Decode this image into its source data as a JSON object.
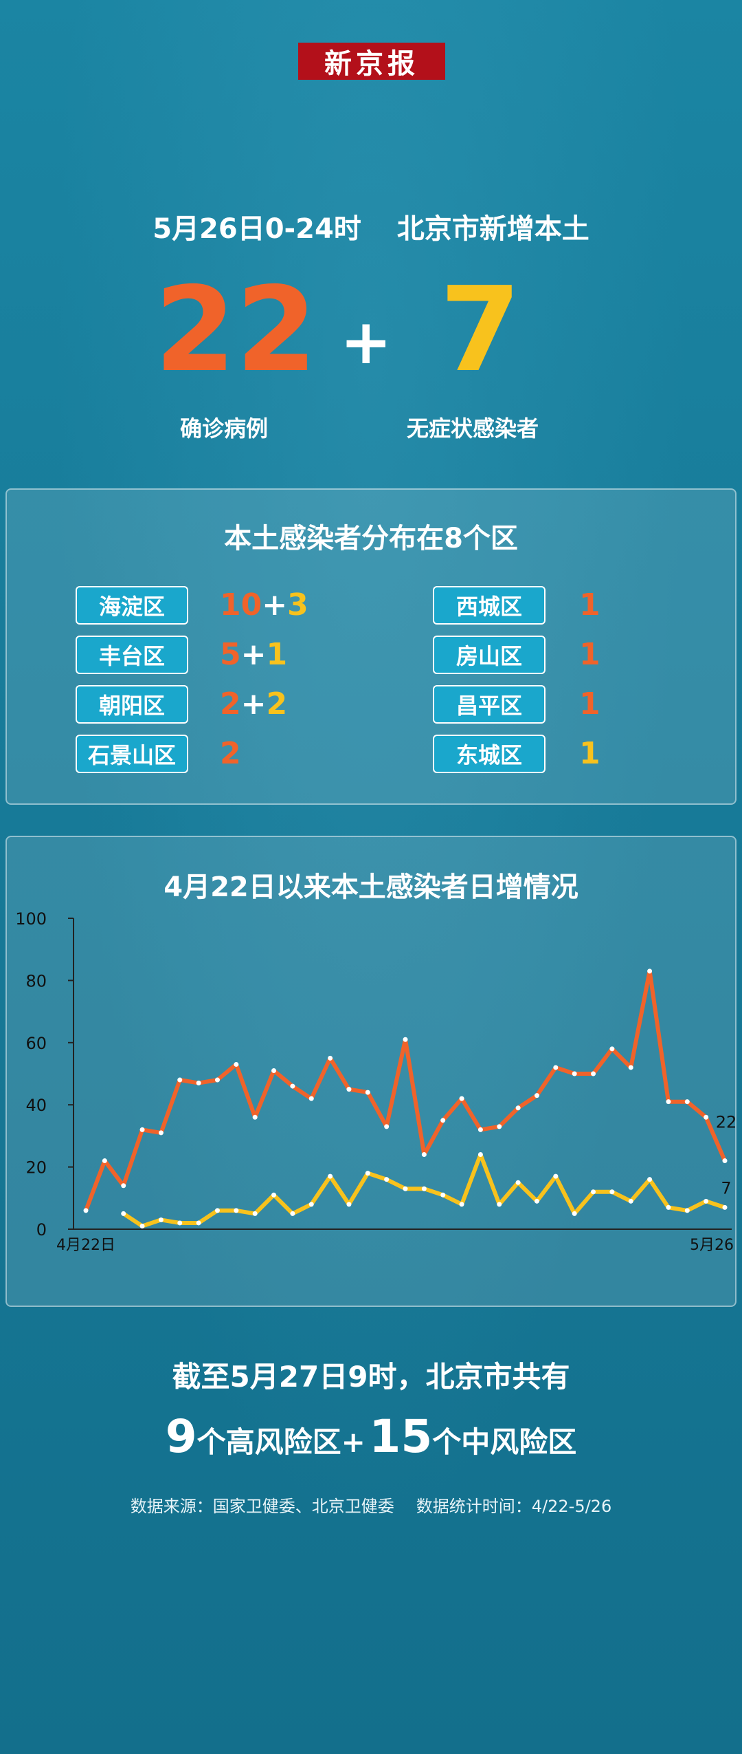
{
  "brand": "新京报",
  "headline": {
    "date": "5月26日0-24时",
    "subject": "北京市新增本土"
  },
  "summary": {
    "confirmed": "22",
    "plus": "+",
    "asymptomatic": "7",
    "confirmed_label": "确诊病例",
    "asymptomatic_label": "无症状感染者"
  },
  "districts": {
    "title": "本土感染者分布在8个区",
    "items": [
      {
        "name": "海淀区",
        "a": "10",
        "plus": "+",
        "b": "3"
      },
      {
        "name": "丰台区",
        "a": "5",
        "plus": "+",
        "b": "1"
      },
      {
        "name": "朝阳区",
        "a": "2",
        "plus": "+",
        "b": "2"
      },
      {
        "name": "石景山区",
        "a": "2"
      },
      {
        "name": "西城区",
        "a": "1"
      },
      {
        "name": "房山区",
        "a": "1"
      },
      {
        "name": "昌平区",
        "a": "1"
      },
      {
        "name": "东城区",
        "b": "1"
      }
    ]
  },
  "colors": {
    "confirmed": "#f0632a",
    "asymptomatic": "#f8c21d",
    "label_box": "#1aa7cc"
  },
  "chart_data": {
    "type": "line",
    "title": "4月22日以来本土感染者日增情况",
    "ylim": [
      0,
      100
    ],
    "yticks": [
      "0",
      "20",
      "40",
      "60",
      "80",
      "100"
    ],
    "x_first_label": "4月22日",
    "x_last_label": "5月26日",
    "series": [
      {
        "key": "confirmed",
        "values": [
          6,
          22,
          14,
          32,
          31,
          48,
          47,
          48,
          53,
          36,
          51,
          46,
          42,
          55,
          45,
          44,
          33,
          61,
          24,
          35,
          42,
          32,
          33,
          39,
          43,
          52,
          50,
          50,
          58,
          52,
          83,
          41,
          41,
          36,
          22
        ],
        "end_label": "22"
      },
      {
        "key": "asymptomatic",
        "values": [
          null,
          null,
          5,
          1,
          3,
          2,
          2,
          6,
          6,
          5,
          11,
          5,
          8,
          17,
          8,
          18,
          16,
          13,
          13,
          11,
          8,
          24,
          8,
          15,
          9,
          17,
          5,
          12,
          12,
          9,
          16,
          7,
          6,
          9,
          7
        ],
        "end_label": "7"
      }
    ]
  },
  "risk": {
    "line1": "截至5月27日9时，北京市共有",
    "high_num": "9",
    "high_text": "个高风险区+",
    "mid_num": "15",
    "mid_text": "个中风险区"
  },
  "source": {
    "origin": "数据来源：国家卫健委、北京卫健委",
    "period": "数据统计时间：4/22-5/26"
  }
}
